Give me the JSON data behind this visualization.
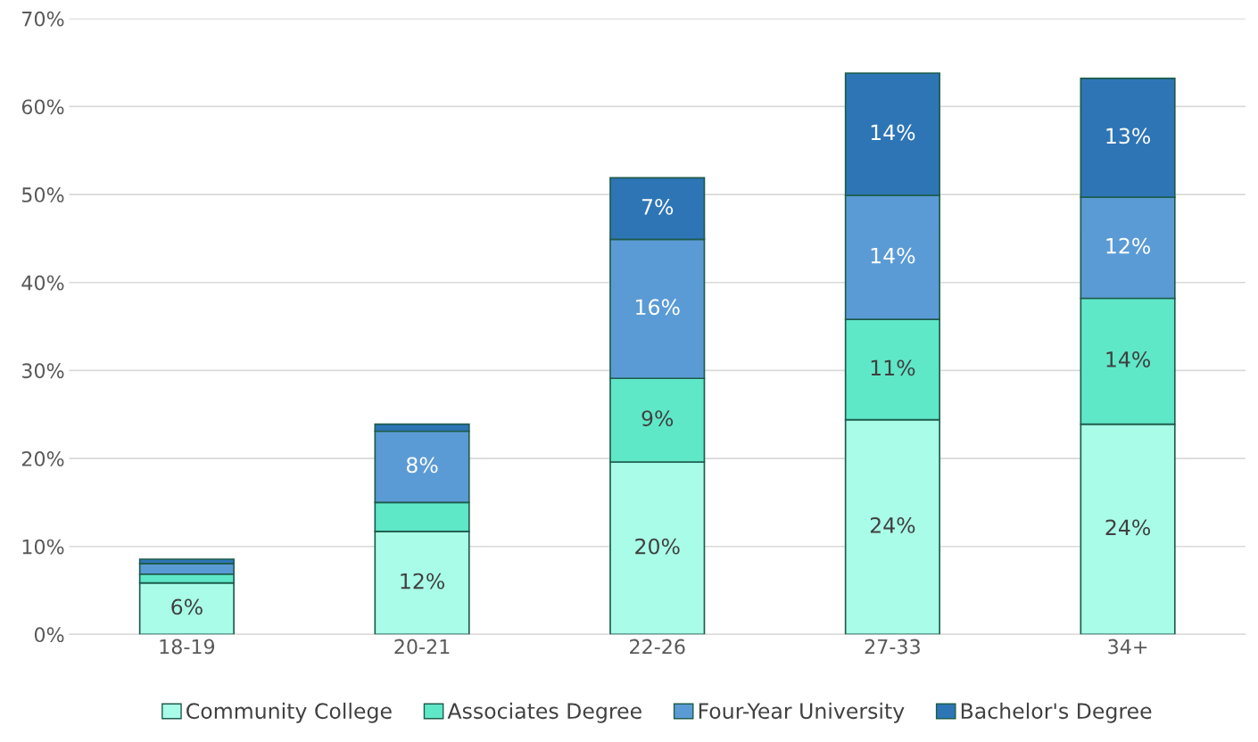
{
  "chart_data": {
    "type": "bar",
    "stacked": true,
    "categories": [
      "18-19",
      "20-21",
      "22-26",
      "27-33",
      "34+"
    ],
    "series": [
      {
        "name": "Community College",
        "color": "#a9fde8",
        "values": [
          5.85,
          11.7,
          19.6,
          24.4,
          23.9
        ],
        "value_labels": [
          "6%",
          "12%",
          "20%",
          "24%",
          "24%"
        ]
      },
      {
        "name": "Associates Degree",
        "color": "#5fe8c8",
        "values": [
          1.0,
          3.3,
          9.5,
          11.4,
          14.3
        ],
        "value_labels": [
          null,
          null,
          "9%",
          "11%",
          "14%"
        ]
      },
      {
        "name": "Four-Year University",
        "color": "#5b9bd5",
        "values": [
          1.2,
          8.1,
          15.8,
          14.1,
          11.5
        ],
        "value_labels": [
          null,
          "8%",
          "16%",
          "14%",
          "12%"
        ]
      },
      {
        "name": "Bachelor's Degree",
        "color": "#2e75b6",
        "values": [
          0.5,
          0.8,
          7.0,
          13.9,
          13.5
        ],
        "value_labels": [
          null,
          null,
          "7%",
          "14%",
          "13%"
        ]
      }
    ],
    "ylim": [
      0,
      70
    ],
    "yticks": [
      {
        "value": 0,
        "label": "0%"
      },
      {
        "value": 10,
        "label": "10%"
      },
      {
        "value": 20,
        "label": "20%"
      },
      {
        "value": 30,
        "label": "30%"
      },
      {
        "value": 40,
        "label": "40%"
      },
      {
        "value": 50,
        "label": "50%"
      },
      {
        "value": 60,
        "label": "60%"
      },
      {
        "value": 70,
        "label": "70%"
      }
    ],
    "grid": "y",
    "legend": "bottom"
  }
}
